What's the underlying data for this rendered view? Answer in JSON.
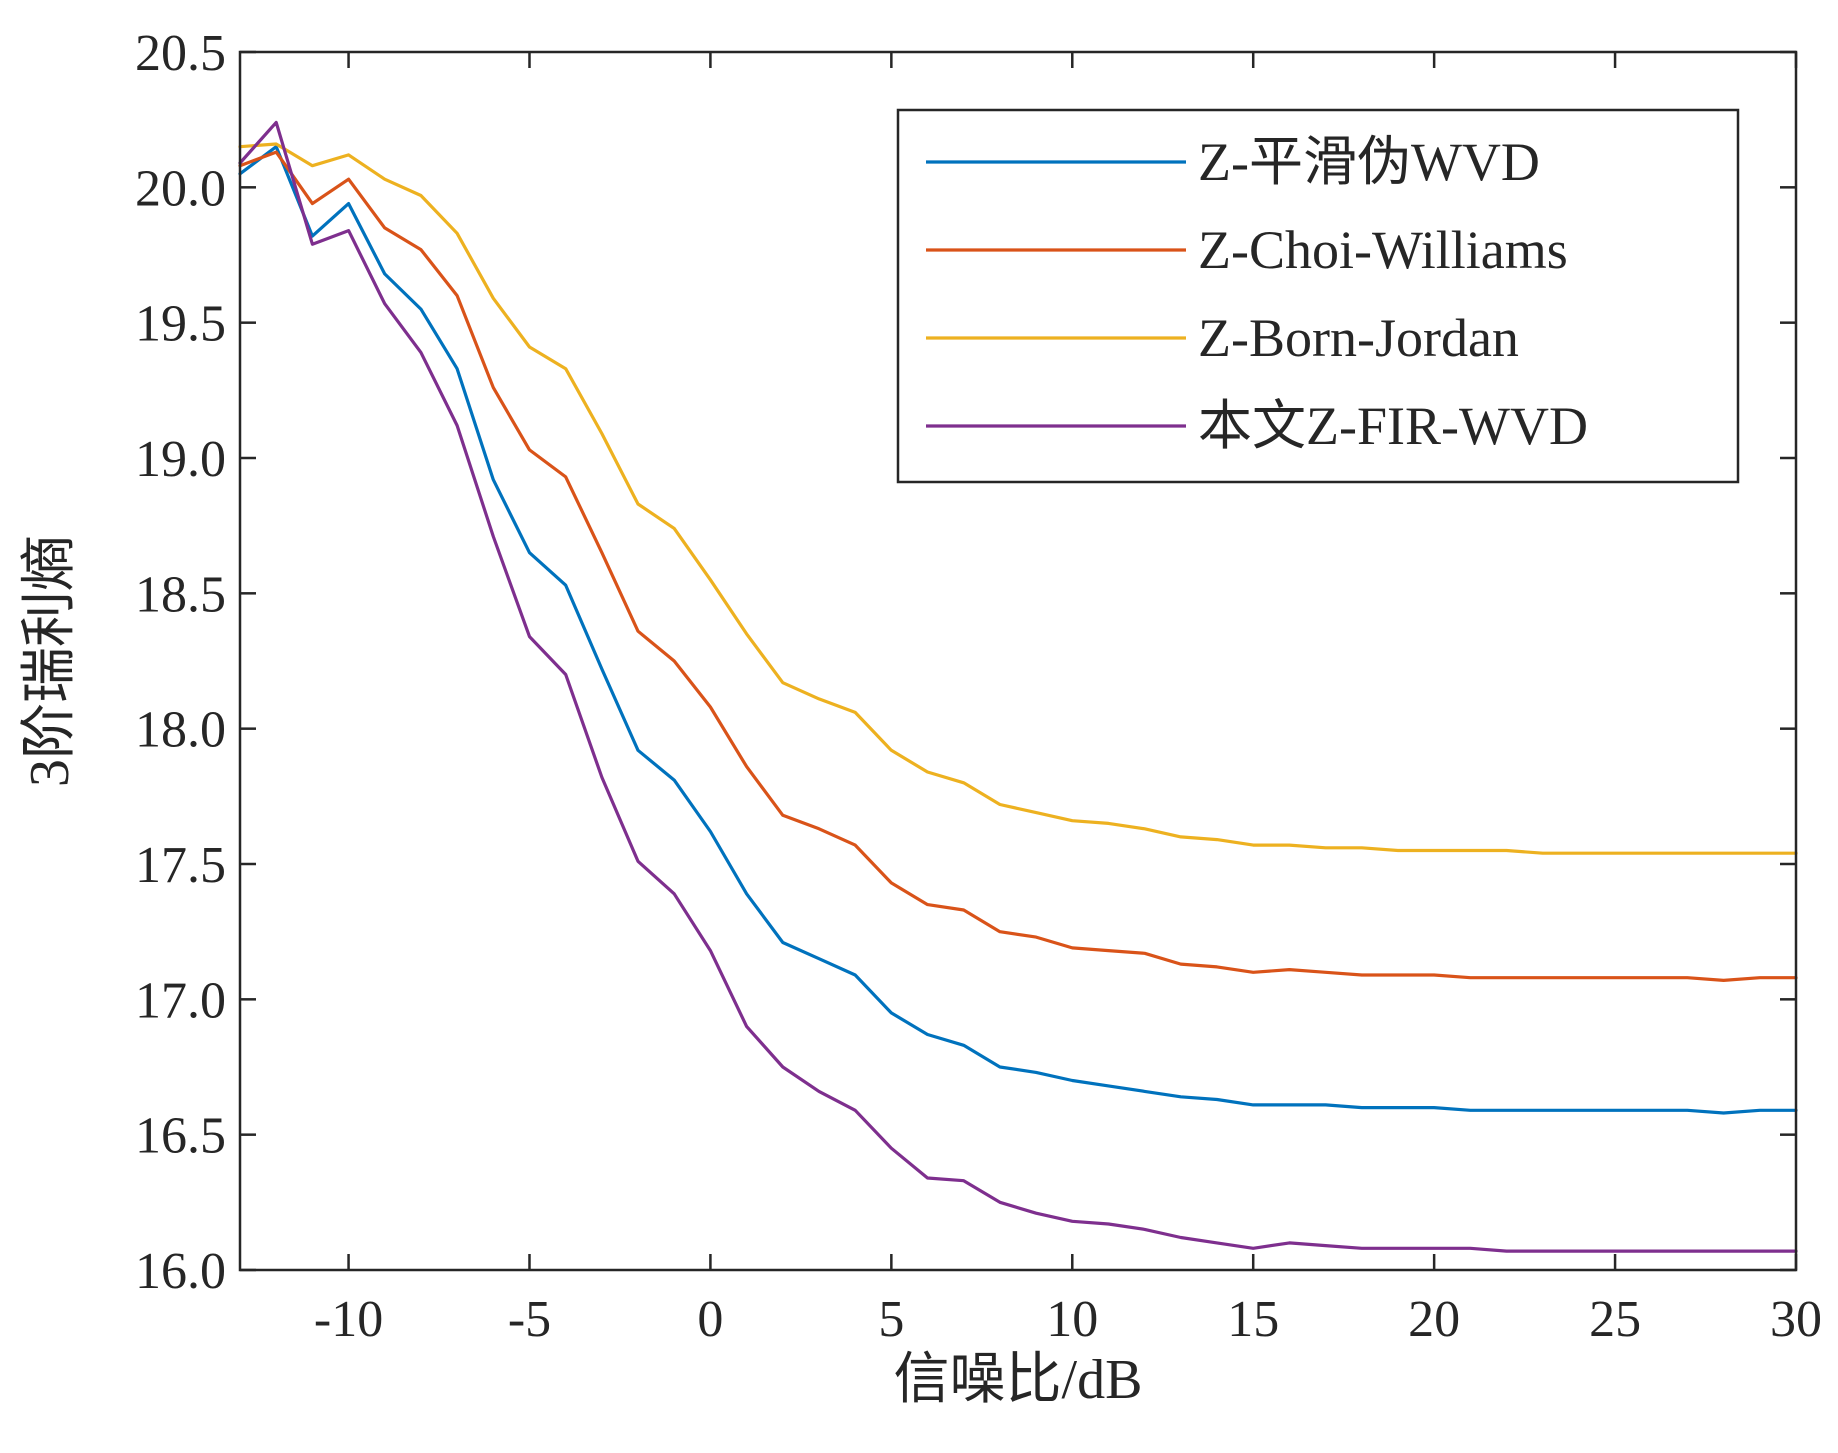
{
  "chart_data": {
    "type": "line",
    "title": "",
    "xlabel": "信噪比/dB",
    "ylabel": "3阶瑞利熵",
    "xlim": [
      -13,
      30
    ],
    "ylim": [
      16.0,
      20.5
    ],
    "xticks": [
      -10,
      -5,
      0,
      5,
      10,
      15,
      20,
      25,
      30
    ],
    "xtick_labels": [
      "-10",
      "-5",
      "0",
      "5",
      "10",
      "15",
      "20",
      "25",
      "30"
    ],
    "yticks": [
      16.0,
      16.5,
      17.0,
      17.5,
      18.0,
      18.5,
      19.0,
      19.5,
      20.0,
      20.5
    ],
    "ytick_labels": [
      "16.0",
      "16.5",
      "17.0",
      "17.5",
      "18.0",
      "18.5",
      "19.0",
      "19.5",
      "20.0",
      "20.5"
    ],
    "grid": false,
    "legend_position": "top-right",
    "x": [
      -13,
      -12,
      -11,
      -10,
      -9,
      -8,
      -7,
      -6,
      -5,
      -4,
      -3,
      -2,
      -1,
      0,
      1,
      2,
      3,
      4,
      5,
      6,
      7,
      8,
      9,
      10,
      11,
      12,
      13,
      14,
      15,
      16,
      17,
      18,
      19,
      20,
      21,
      22,
      23,
      24,
      25,
      26,
      27,
      28,
      29,
      30
    ],
    "series": [
      {
        "name": "Z-平滑伪WVD",
        "color": "#0072BD",
        "values": [
          20.05,
          20.15,
          19.82,
          19.94,
          19.68,
          19.55,
          19.33,
          18.92,
          18.65,
          18.53,
          18.22,
          17.92,
          17.81,
          17.62,
          17.39,
          17.21,
          17.15,
          17.09,
          16.95,
          16.87,
          16.83,
          16.75,
          16.73,
          16.7,
          16.68,
          16.66,
          16.64,
          16.63,
          16.61,
          16.61,
          16.61,
          16.6,
          16.6,
          16.6,
          16.59,
          16.59,
          16.59,
          16.59,
          16.59,
          16.59,
          16.59,
          16.58,
          16.59,
          16.59
        ]
      },
      {
        "name": "Z-Choi-Williams",
        "color": "#D95319",
        "values": [
          20.08,
          20.13,
          19.94,
          20.03,
          19.85,
          19.77,
          19.6,
          19.26,
          19.03,
          18.93,
          18.65,
          18.36,
          18.25,
          18.08,
          17.86,
          17.68,
          17.63,
          17.57,
          17.43,
          17.35,
          17.33,
          17.25,
          17.23,
          17.19,
          17.18,
          17.17,
          17.13,
          17.12,
          17.1,
          17.11,
          17.1,
          17.09,
          17.09,
          17.09,
          17.08,
          17.08,
          17.08,
          17.08,
          17.08,
          17.08,
          17.08,
          17.07,
          17.08,
          17.08
        ]
      },
      {
        "name": "Z-Born-Jordan",
        "color": "#EDB120",
        "values": [
          20.15,
          20.16,
          20.08,
          20.12,
          20.03,
          19.97,
          19.83,
          19.59,
          19.41,
          19.33,
          19.09,
          18.83,
          18.74,
          18.55,
          18.35,
          18.17,
          18.11,
          18.06,
          17.92,
          17.84,
          17.8,
          17.72,
          17.69,
          17.66,
          17.65,
          17.63,
          17.6,
          17.59,
          17.57,
          17.57,
          17.56,
          17.56,
          17.55,
          17.55,
          17.55,
          17.55,
          17.54,
          17.54,
          17.54,
          17.54,
          17.54,
          17.54,
          17.54,
          17.54
        ]
      },
      {
        "name": "本文Z-FIR-WVD",
        "color": "#7E2F8E",
        "values": [
          20.09,
          20.24,
          19.79,
          19.84,
          19.57,
          19.39,
          19.12,
          18.71,
          18.34,
          18.2,
          17.82,
          17.51,
          17.39,
          17.18,
          16.9,
          16.75,
          16.66,
          16.59,
          16.45,
          16.34,
          16.33,
          16.25,
          16.21,
          16.18,
          16.17,
          16.15,
          16.12,
          16.1,
          16.08,
          16.1,
          16.09,
          16.08,
          16.08,
          16.08,
          16.08,
          16.07,
          16.07,
          16.07,
          16.07,
          16.07,
          16.07,
          16.07,
          16.07,
          16.07
        ]
      }
    ]
  }
}
